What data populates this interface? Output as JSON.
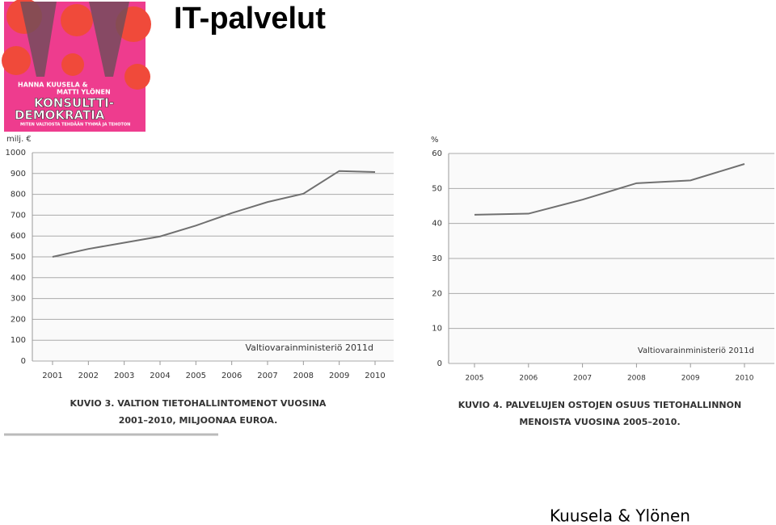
{
  "title": "IT-palvelut",
  "cover": {
    "authors": [
      "HANNA KUUSELA &",
      "MATTI YLÖNEN"
    ],
    "book_title": [
      "KONSULTTI-",
      "DEMOKRATIA"
    ],
    "subtitle": "MITEN VALTIOSTA TEHDÄÄN TYHMÄ JA TEHOTON"
  },
  "footer": "Kuusela & Ylönen",
  "chart_data": [
    {
      "type": "line",
      "y_label": "milj. €",
      "categories": [
        "2001",
        "2002",
        "2003",
        "2004",
        "2005",
        "2006",
        "2007",
        "2008",
        "2009",
        "2010"
      ],
      "values": [
        500,
        538,
        568,
        598,
        650,
        710,
        763,
        803,
        912,
        907
      ],
      "color": "#707070",
      "ylim": [
        0,
        1000
      ],
      "yticks": [
        0,
        100,
        200,
        300,
        400,
        500,
        600,
        700,
        800,
        900,
        1000
      ],
      "grid": true,
      "annotation": "Valtiovarainministeriö 2011d",
      "caption": [
        "KUVIO 3. VALTION TIETOHALLINTOMENOT VUOSINA",
        "2001–2010, MILJOONAA EUROA."
      ]
    },
    {
      "type": "line",
      "y_label": "%",
      "categories": [
        "2005",
        "2006",
        "2007",
        "2008",
        "2009",
        "2010"
      ],
      "values": [
        42.5,
        42.8,
        46.8,
        51.5,
        52.3,
        57
      ],
      "color": "#707070",
      "ylim": [
        0,
        60
      ],
      "yticks": [
        0,
        10,
        20,
        30,
        40,
        50,
        60
      ],
      "grid": true,
      "annotation": "Valtiovarainministeriö 2011d",
      "caption": [
        "KUVIO 4. PALVELUJEN OSTOJEN OSUUS TIETOHALLINNON",
        "MENOISTA VUOSINA 2005–2010."
      ]
    }
  ]
}
